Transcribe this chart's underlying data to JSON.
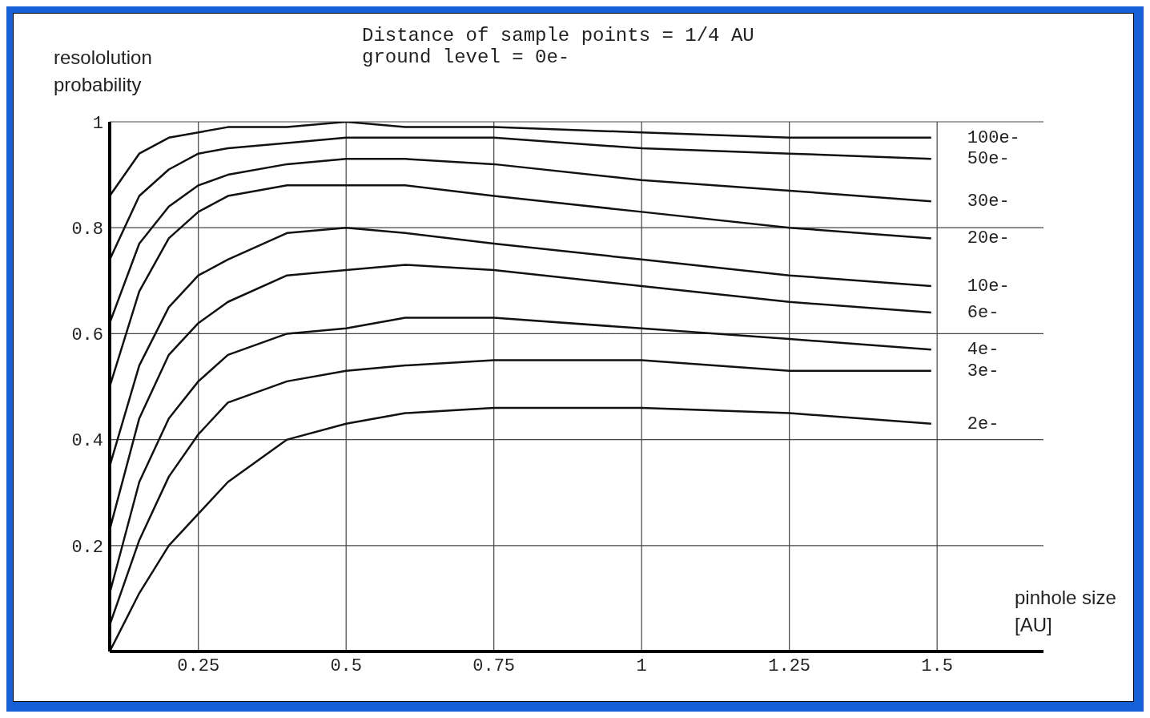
{
  "chart_data": {
    "type": "line",
    "title": "Distance of sample points = 1/4 AU",
    "subtitle": "ground level = 0e-",
    "xlabel": "pinhole size [AU]",
    "ylabel": "resololution probability",
    "x": [
      0.1,
      0.15,
      0.2,
      0.25,
      0.3,
      0.4,
      0.5,
      0.6,
      0.75,
      1,
      1.25,
      1.49
    ],
    "series": [
      {
        "name": "100e-",
        "color": "#111111",
        "values": [
          0.86,
          0.94,
          0.97,
          0.98,
          0.99,
          0.99,
          1.0,
          0.99,
          0.99,
          0.98,
          0.97,
          0.97
        ]
      },
      {
        "name": "50e-",
        "color": "#111111",
        "values": [
          0.74,
          0.86,
          0.91,
          0.94,
          0.95,
          0.96,
          0.97,
          0.97,
          0.97,
          0.95,
          0.94,
          0.93
        ]
      },
      {
        "name": "30e-",
        "color": "#111111",
        "values": [
          0.62,
          0.77,
          0.84,
          0.88,
          0.9,
          0.92,
          0.93,
          0.93,
          0.92,
          0.89,
          0.87,
          0.85
        ]
      },
      {
        "name": "20e-",
        "color": "#111111",
        "values": [
          0.5,
          0.68,
          0.78,
          0.83,
          0.86,
          0.88,
          0.88,
          0.88,
          0.86,
          0.83,
          0.8,
          0.78
        ]
      },
      {
        "name": "10e-",
        "color": "#111111",
        "values": [
          0.35,
          0.54,
          0.65,
          0.71,
          0.74,
          0.79,
          0.8,
          0.79,
          0.77,
          0.74,
          0.71,
          0.69
        ]
      },
      {
        "name": "6e-",
        "color": "#111111",
        "values": [
          0.23,
          0.44,
          0.56,
          0.62,
          0.66,
          0.71,
          0.72,
          0.73,
          0.72,
          0.69,
          0.66,
          0.64
        ]
      },
      {
        "name": "4e-",
        "color": "#111111",
        "values": [
          0.11,
          0.32,
          0.44,
          0.51,
          0.56,
          0.6,
          0.61,
          0.63,
          0.63,
          0.61,
          0.59,
          0.57
        ]
      },
      {
        "name": "3e-",
        "color": "#111111",
        "values": [
          0.05,
          0.21,
          0.33,
          0.41,
          0.47,
          0.51,
          0.53,
          0.54,
          0.55,
          0.55,
          0.53,
          0.53
        ]
      },
      {
        "name": "2e-",
        "color": "#111111",
        "values": [
          0.0,
          0.11,
          0.2,
          0.26,
          0.32,
          0.4,
          0.43,
          0.45,
          0.46,
          0.46,
          0.45,
          0.43
        ]
      }
    ],
    "xlim": [
      0.1,
      1.68
    ],
    "xticks": [
      0.25,
      0.5,
      0.75,
      1,
      1.25,
      1.5
    ],
    "ylim": [
      0,
      1
    ],
    "yticks": [
      0.2,
      0.4,
      0.6,
      0.8,
      1
    ],
    "grid": true,
    "legend": false
  }
}
